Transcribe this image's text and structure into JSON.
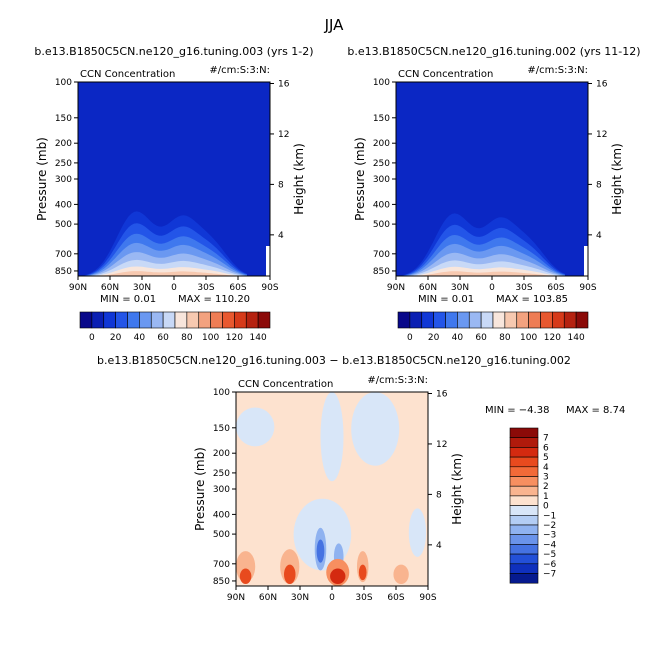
{
  "page_title": "JJA",
  "colors": {
    "bg_field": "#0b27c4",
    "bg_diff": "#fde2cf"
  },
  "chart_data": [
    {
      "type": "heatmap",
      "title": "b.e13.B1850C5CN.ne120_g16.tuning.003 (yrs 1-2)",
      "left_label": "CCN Concentration",
      "right_label": "#/cm:S:3:N:",
      "ylabel": "Pressure (mb)",
      "ylabel_right": "Height (km)",
      "x_ticks": [
        "90N",
        "60N",
        "30N",
        "0",
        "30S",
        "60S",
        "90S"
      ],
      "y_ticks": [
        100,
        150,
        200,
        250,
        300,
        400,
        500,
        700,
        850
      ],
      "y_ticks_right": [
        4,
        8,
        12,
        16
      ],
      "min_label": "MIN =    0.01",
      "max_label": "MAX = 110.20",
      "colorbar_labels": [
        "0",
        "20",
        "40",
        "60",
        "80",
        "100",
        "120",
        "140"
      ],
      "colorbar_colors": [
        "#08088a",
        "#0a1fb3",
        "#1037d6",
        "#2355e8",
        "#3f78ee",
        "#6a98f1",
        "#9ab8f3",
        "#c8d9f7",
        "#f8e6dc",
        "#f7c9b0",
        "#f3a27f",
        "#ee7d55",
        "#e8582f",
        "#d63a1a",
        "#b52210",
        "#8b0a08"
      ]
    },
    {
      "type": "heatmap",
      "title": "b.e13.B1850C5CN.ne120_g16.tuning.002 (yrs 11-12)",
      "left_label": "CCN Concentration",
      "right_label": "#/cm:S:3:N:",
      "ylabel": "Pressure (mb)",
      "ylabel_right": "Height (km)",
      "x_ticks": [
        "90N",
        "60N",
        "30N",
        "0",
        "30S",
        "60S",
        "90S"
      ],
      "y_ticks": [
        100,
        150,
        200,
        250,
        300,
        400,
        500,
        700,
        850
      ],
      "y_ticks_right": [
        4,
        8,
        12,
        16
      ],
      "min_label": "MIN =    0.01",
      "max_label": "MAX = 103.85",
      "colorbar_labels": [
        "0",
        "20",
        "40",
        "60",
        "80",
        "100",
        "120",
        "140"
      ]
    },
    {
      "type": "heatmap",
      "title": "b.e13.B1850C5CN.ne120_g16.tuning.003 − b.e13.B1850C5CN.ne120_g16.tuning.002",
      "left_label": "CCN Concentration",
      "right_label": "#/cm:S:3:N:",
      "ylabel": "Pressure (mb)",
      "ylabel_right": "Height (km)",
      "x_ticks": [
        "90N",
        "60N",
        "30N",
        "0",
        "30S",
        "60S",
        "90S"
      ],
      "y_ticks": [
        100,
        150,
        200,
        250,
        300,
        400,
        500,
        700,
        850
      ],
      "y_ticks_right": [
        4,
        8,
        12,
        16
      ],
      "min_label": "MIN =   −4.38",
      "max_label": "MAX =    8.74",
      "colorbar_labels": [
        "7",
        "6",
        "5",
        "4",
        "3",
        "2",
        "1",
        "0",
        "−1",
        "−2",
        "−3",
        "−4",
        "−5",
        "−6",
        "−7"
      ],
      "colorbar_colors": [
        "#8b0a08",
        "#b01a0c",
        "#d42a10",
        "#e84a1e",
        "#f26a38",
        "#f78f60",
        "#f9b48f",
        "#fde2cf",
        "#d8e6f8",
        "#b3cdf4",
        "#8fb2f0",
        "#6a93ea",
        "#4572e2",
        "#2350d8",
        "#0f30bd",
        "#061a8f"
      ]
    }
  ]
}
